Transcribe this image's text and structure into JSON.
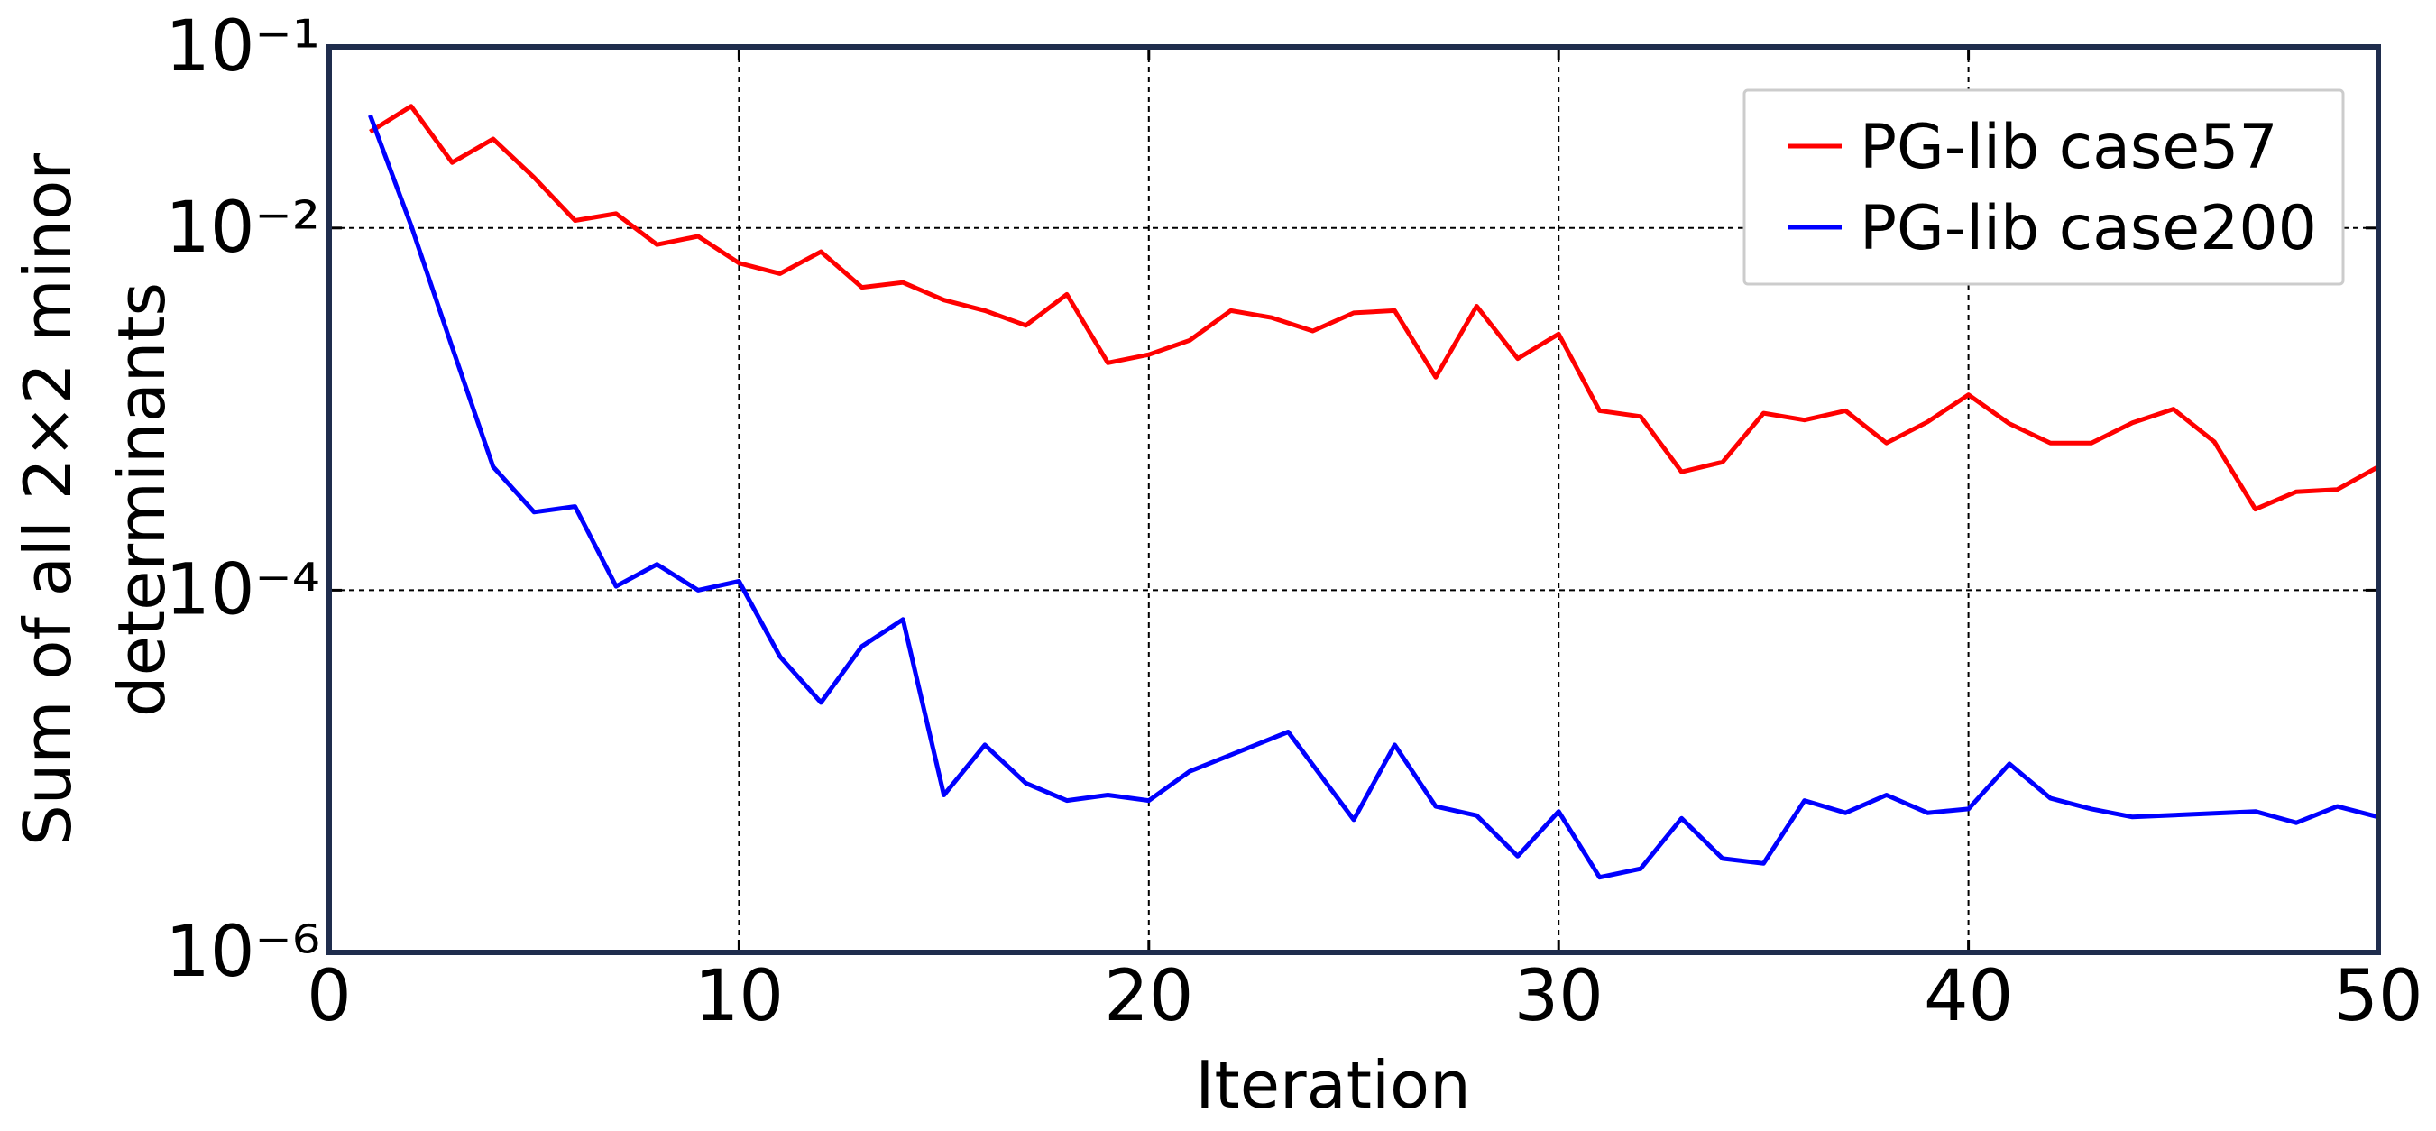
{
  "chart_data": {
    "type": "line",
    "xlabel": "Iteration",
    "ylabel": [
      "Sum of all 2×2 minor",
      "determinants"
    ],
    "xlim": [
      0,
      50
    ],
    "xticks": [
      0,
      10,
      20,
      30,
      40,
      50
    ],
    "ylim": [
      1e-06,
      0.1
    ],
    "yscale": "log",
    "yticks": [
      {
        "value": 0.1,
        "label": "10⁻¹"
      },
      {
        "value": 0.01,
        "label": "10⁻²"
      },
      {
        "value": 0.0001,
        "label": "10⁻⁴"
      },
      {
        "value": 1e-06,
        "label": "10⁻⁶"
      }
    ],
    "grid": true,
    "legend": "upper right",
    "series": [
      {
        "name": "PG-lib case57",
        "color": "#ff0000",
        "x": [
          1,
          2,
          3,
          4,
          5,
          6,
          7,
          8,
          9,
          10,
          11,
          12,
          13,
          14,
          15,
          16,
          17,
          18,
          19,
          20,
          21,
          22,
          23,
          24,
          25,
          26,
          27,
          28,
          29,
          30,
          31,
          32,
          33,
          34,
          35,
          36,
          37,
          38,
          39,
          40,
          41,
          42,
          43,
          44,
          45,
          46,
          47,
          48,
          49,
          50
        ],
        "values": [
          0.034,
          0.047,
          0.023,
          0.031,
          0.019,
          0.011,
          0.012,
          0.0081,
          0.009,
          0.0064,
          0.0056,
          0.0074,
          0.0047,
          0.005,
          0.004,
          0.0035,
          0.0029,
          0.0043,
          0.0018,
          0.002,
          0.0024,
          0.0035,
          0.0032,
          0.0027,
          0.0034,
          0.0035,
          0.0015,
          0.0037,
          0.0019,
          0.0026,
          0.00098,
          0.00091,
          0.00045,
          0.00051,
          0.00095,
          0.00087,
          0.00098,
          0.00065,
          0.00085,
          0.0012,
          0.00083,
          0.00065,
          0.00065,
          0.00084,
          0.001,
          0.00066,
          0.00028,
          0.00035,
          0.00036,
          0.00048
        ]
      },
      {
        "name": "PG-lib case200",
        "color": "#0000ff",
        "x": [
          1,
          2,
          3,
          4,
          5,
          6,
          7,
          8,
          9,
          10,
          11,
          12,
          13,
          14,
          15,
          16,
          17,
          18,
          19,
          20,
          21,
          23.4,
          25,
          26,
          27,
          28,
          29,
          30,
          31,
          32,
          33,
          34,
          35,
          36,
          37,
          38,
          39,
          40,
          41,
          42,
          43,
          44,
          47,
          48,
          49,
          50
        ],
        "values": [
          0.042,
          0.0103,
          0.0022,
          0.00048,
          0.00027,
          0.00029,
          0.000105,
          0.000139,
          0.0001,
          0.000112,
          4.3e-05,
          2.4e-05,
          4.9e-05,
          6.9e-05,
          7.4e-06,
          1.4e-05,
          8.6e-06,
          6.9e-06,
          7.4e-06,
          6.9e-06,
          1e-05,
          1.65e-05,
          5.4e-06,
          1.4e-05,
          6.4e-06,
          5.7e-06,
          3.4e-06,
          6e-06,
          2.6e-06,
          2.9e-06,
          5.5e-06,
          3.3e-06,
          3.1e-06,
          6.9e-06,
          5.9e-06,
          7.4e-06,
          5.9e-06,
          6.2e-06,
          1.1e-05,
          7.1e-06,
          6.2e-06,
          5.6e-06,
          6e-06,
          5.2e-06,
          6.4e-06,
          5.6e-06
        ]
      }
    ]
  }
}
